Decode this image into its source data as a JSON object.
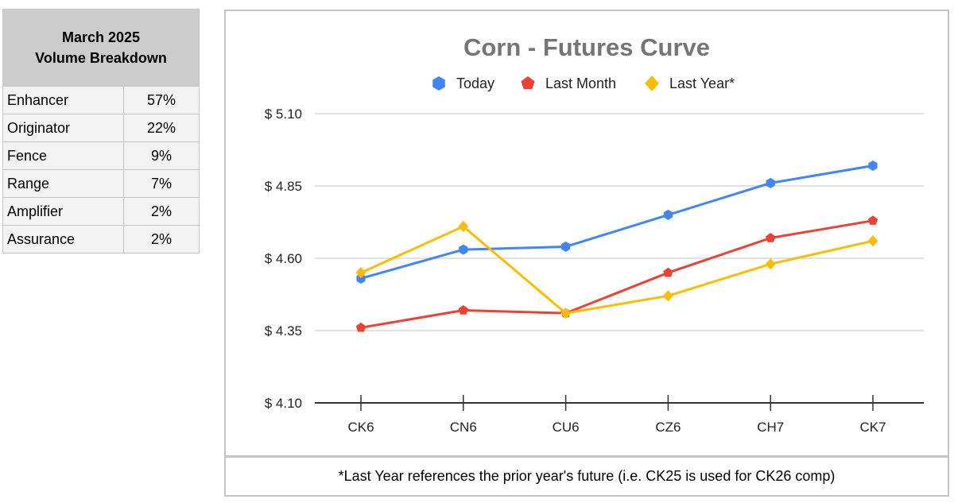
{
  "volume_table": {
    "title_line1": "March 2025",
    "title_line2": "Volume Breakdown",
    "rows": [
      {
        "label": "Enhancer",
        "value": "57%"
      },
      {
        "label": "Originator",
        "value": "22%"
      },
      {
        "label": "Fence",
        "value": "9%"
      },
      {
        "label": "Range",
        "value": "7%"
      },
      {
        "label": "Amplifier",
        "value": "2%"
      },
      {
        "label": "Assurance",
        "value": "2%"
      }
    ]
  },
  "footnote": "*Last Year references the prior year's future (i.e. CK25 is used for CK26 comp)",
  "chart_data": {
    "type": "line",
    "title": "Corn - Futures Curve",
    "xlabel": "",
    "ylabel": "",
    "categories": [
      "CK6",
      "CN6",
      "CU6",
      "CZ6",
      "CH7",
      "CK7"
    ],
    "ylim": [
      4.1,
      5.1
    ],
    "yticks": [
      4.1,
      4.35,
      4.6,
      4.85,
      5.1
    ],
    "ytick_labels": [
      "$ 4.10",
      "$ 4.35",
      "$ 4.60",
      "$ 4.85",
      "$ 5.10"
    ],
    "grid": true,
    "legend_position": "top",
    "series": [
      {
        "name": "Today",
        "color": "#4285f4",
        "marker": "hexagon",
        "values": [
          4.53,
          4.63,
          4.64,
          4.75,
          4.86,
          4.92
        ]
      },
      {
        "name": "Last Month",
        "color": "#ea4335",
        "marker": "pentagon",
        "values": [
          4.36,
          4.42,
          4.41,
          4.55,
          4.67,
          4.73
        ]
      },
      {
        "name": "Last Year*",
        "color": "#fbbc04",
        "marker": "diamond",
        "values": [
          4.55,
          4.71,
          4.41,
          4.47,
          4.58,
          4.66
        ]
      }
    ]
  }
}
